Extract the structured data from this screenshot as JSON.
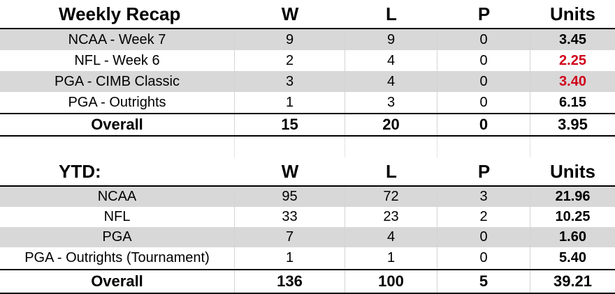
{
  "weekly": {
    "header": {
      "label": "Weekly Recap",
      "w": "W",
      "l": "L",
      "p": "P",
      "units": "Units"
    },
    "rows": [
      {
        "label": "NCAA - Week 7",
        "w": "9",
        "l": "9",
        "p": "0",
        "units": "3.45",
        "units_color": "black"
      },
      {
        "label": "NFL - Week 6",
        "w": "2",
        "l": "4",
        "p": "0",
        "units": "2.25",
        "units_color": "red"
      },
      {
        "label": "PGA - CIMB Classic",
        "w": "3",
        "l": "4",
        "p": "0",
        "units": "3.40",
        "units_color": "red"
      },
      {
        "label": "PGA - Outrights",
        "w": "1",
        "l": "3",
        "p": "0",
        "units": "6.15",
        "units_color": "black"
      }
    ],
    "total": {
      "label": "Overall",
      "w": "15",
      "l": "20",
      "p": "0",
      "units": "3.95"
    }
  },
  "ytd": {
    "header": {
      "label": "YTD:",
      "w": "W",
      "l": "L",
      "p": "P",
      "units": "Units"
    },
    "rows": [
      {
        "label": "NCAA",
        "w": "95",
        "l": "72",
        "p": "3",
        "units": "21.96",
        "units_color": "black"
      },
      {
        "label": "NFL",
        "w": "33",
        "l": "23",
        "p": "2",
        "units": "10.25",
        "units_color": "black"
      },
      {
        "label": "PGA",
        "w": "7",
        "l": "4",
        "p": "0",
        "units": "1.60",
        "units_color": "black"
      },
      {
        "label": "PGA - Outrights (Tournament)",
        "w": "1",
        "l": "1",
        "p": "0",
        "units": "5.40",
        "units_color": "black"
      }
    ],
    "total": {
      "label": "Overall",
      "w": "136",
      "l": "100",
      "p": "5",
      "units": "39.21"
    }
  },
  "colors": {
    "red": "#d0021b",
    "shade": "#d8d8d8"
  }
}
